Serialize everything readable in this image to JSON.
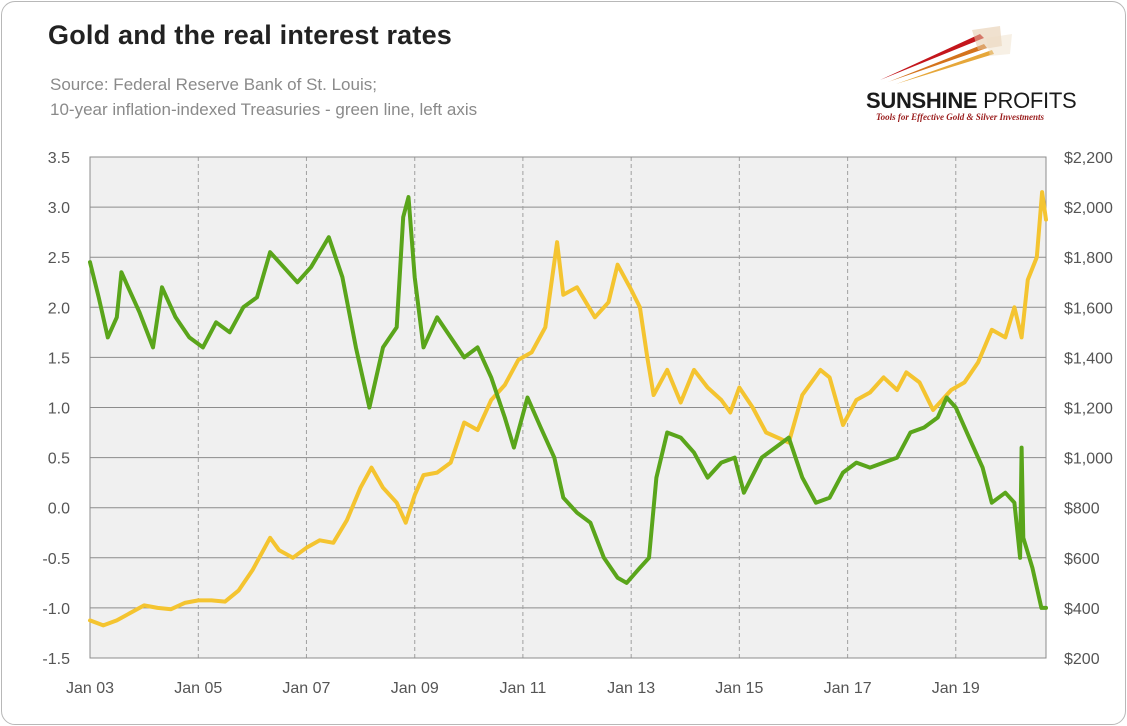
{
  "chart_data": {
    "type": "line",
    "title": "Gold and the real interest rates",
    "subtitle_lines": [
      "Source: Federal Reserve Bank of St. Louis;",
      "10-year inflation-indexed Treasuries - green line, left axis"
    ],
    "x_range": [
      "2003-01-01",
      "2020-09-01"
    ],
    "x_ticks": [
      "Jan 03",
      "Jan 05",
      "Jan 07",
      "Jan 09",
      "Jan 11",
      "Jan 13",
      "Jan 15",
      "Jan 17",
      "Jan 19"
    ],
    "x_tick_dates": [
      "2003-01-01",
      "2005-01-01",
      "2007-01-01",
      "2009-01-01",
      "2011-01-01",
      "2013-01-01",
      "2015-01-01",
      "2017-01-01",
      "2019-01-01"
    ],
    "y_left": {
      "min": -1.5,
      "max": 3.5,
      "ticks": [
        "3.5",
        "3.0",
        "2.5",
        "2.0",
        "1.5",
        "1.0",
        "0.5",
        "0.0",
        "-0.5",
        "-1.0",
        "-1.5"
      ]
    },
    "y_right": {
      "min": 200,
      "max": 2200,
      "ticks": [
        "$2,200",
        "$2,000",
        "$1,800",
        "$1,600",
        "$1,400",
        "$1,200",
        "$1,000",
        "$800",
        "$600",
        "$400",
        "$200"
      ]
    },
    "grid": {
      "horizontal": true,
      "vertical_dashed": true
    },
    "series": [
      {
        "axis": "left",
        "color": "#5aa51b",
        "points": [
          [
            "2003-01-01",
            2.45
          ],
          [
            "2003-03-01",
            2.1
          ],
          [
            "2003-05-01",
            1.7
          ],
          [
            "2003-07-01",
            1.9
          ],
          [
            "2003-08-01",
            2.35
          ],
          [
            "2003-10-01",
            2.15
          ],
          [
            "2003-12-01",
            1.95
          ],
          [
            "2004-03-01",
            1.6
          ],
          [
            "2004-05-01",
            2.2
          ],
          [
            "2004-08-01",
            1.9
          ],
          [
            "2004-11-01",
            1.7
          ],
          [
            "2005-02-01",
            1.6
          ],
          [
            "2005-05-01",
            1.85
          ],
          [
            "2005-08-01",
            1.75
          ],
          [
            "2005-11-01",
            2.0
          ],
          [
            "2006-02-01",
            2.1
          ],
          [
            "2006-05-01",
            2.55
          ],
          [
            "2006-08-01",
            2.4
          ],
          [
            "2006-11-01",
            2.25
          ],
          [
            "2007-02-01",
            2.4
          ],
          [
            "2007-06-01",
            2.7
          ],
          [
            "2007-09-01",
            2.3
          ],
          [
            "2007-12-01",
            1.6
          ],
          [
            "2008-03-01",
            1.0
          ],
          [
            "2008-06-01",
            1.6
          ],
          [
            "2008-09-01",
            1.8
          ],
          [
            "2008-10-15",
            2.9
          ],
          [
            "2008-11-20",
            3.1
          ],
          [
            "2009-01-01",
            2.3
          ],
          [
            "2009-03-01",
            1.6
          ],
          [
            "2009-06-01",
            1.9
          ],
          [
            "2009-09-01",
            1.7
          ],
          [
            "2009-12-01",
            1.5
          ],
          [
            "2010-03-01",
            1.6
          ],
          [
            "2010-06-01",
            1.3
          ],
          [
            "2010-09-01",
            0.9
          ],
          [
            "2010-11-01",
            0.6
          ],
          [
            "2011-02-01",
            1.1
          ],
          [
            "2011-05-01",
            0.8
          ],
          [
            "2011-08-01",
            0.5
          ],
          [
            "2011-10-01",
            0.1
          ],
          [
            "2012-01-01",
            -0.05
          ],
          [
            "2012-04-01",
            -0.15
          ],
          [
            "2012-07-01",
            -0.5
          ],
          [
            "2012-10-01",
            -0.7
          ],
          [
            "2012-12-01",
            -0.75
          ],
          [
            "2013-03-01",
            -0.6
          ],
          [
            "2013-05-01",
            -0.5
          ],
          [
            "2013-06-20",
            0.3
          ],
          [
            "2013-09-01",
            0.75
          ],
          [
            "2013-12-01",
            0.7
          ],
          [
            "2014-03-01",
            0.55
          ],
          [
            "2014-06-01",
            0.3
          ],
          [
            "2014-09-01",
            0.45
          ],
          [
            "2014-12-01",
            0.5
          ],
          [
            "2015-02-01",
            0.15
          ],
          [
            "2015-06-01",
            0.5
          ],
          [
            "2015-09-01",
            0.6
          ],
          [
            "2015-12-01",
            0.7
          ],
          [
            "2016-03-01",
            0.3
          ],
          [
            "2016-06-01",
            0.05
          ],
          [
            "2016-09-01",
            0.1
          ],
          [
            "2016-12-01",
            0.35
          ],
          [
            "2017-03-01",
            0.45
          ],
          [
            "2017-06-01",
            0.4
          ],
          [
            "2017-09-01",
            0.45
          ],
          [
            "2017-12-01",
            0.5
          ],
          [
            "2018-03-01",
            0.75
          ],
          [
            "2018-06-01",
            0.8
          ],
          [
            "2018-09-01",
            0.9
          ],
          [
            "2018-11-01",
            1.1
          ],
          [
            "2019-01-01",
            1.0
          ],
          [
            "2019-04-01",
            0.7
          ],
          [
            "2019-07-01",
            0.4
          ],
          [
            "2019-09-01",
            0.05
          ],
          [
            "2019-12-01",
            0.15
          ],
          [
            "2020-02-01",
            0.05
          ],
          [
            "2020-03-10",
            -0.5
          ],
          [
            "2020-03-20",
            0.6
          ],
          [
            "2020-04-01",
            -0.3
          ],
          [
            "2020-06-01",
            -0.6
          ],
          [
            "2020-08-01",
            -1.0
          ],
          [
            "2020-09-01",
            -1.0
          ]
        ]
      },
      {
        "axis": "right",
        "color": "#f4c430",
        "points": [
          [
            "2003-01-01",
            350
          ],
          [
            "2003-04-01",
            330
          ],
          [
            "2003-07-01",
            350
          ],
          [
            "2003-10-01",
            380
          ],
          [
            "2004-01-01",
            410
          ],
          [
            "2004-04-01",
            400
          ],
          [
            "2004-07-01",
            395
          ],
          [
            "2004-10-01",
            420
          ],
          [
            "2005-01-01",
            430
          ],
          [
            "2005-04-01",
            430
          ],
          [
            "2005-07-01",
            425
          ],
          [
            "2005-10-01",
            470
          ],
          [
            "2006-01-01",
            550
          ],
          [
            "2006-05-01",
            680
          ],
          [
            "2006-07-01",
            630
          ],
          [
            "2006-10-01",
            600
          ],
          [
            "2007-01-01",
            640
          ],
          [
            "2007-04-01",
            670
          ],
          [
            "2007-07-01",
            660
          ],
          [
            "2007-10-01",
            750
          ],
          [
            "2008-01-01",
            880
          ],
          [
            "2008-03-15",
            960
          ],
          [
            "2008-06-01",
            880
          ],
          [
            "2008-09-01",
            820
          ],
          [
            "2008-11-01",
            740
          ],
          [
            "2009-01-01",
            850
          ],
          [
            "2009-03-01",
            930
          ],
          [
            "2009-06-01",
            940
          ],
          [
            "2009-09-01",
            980
          ],
          [
            "2009-12-01",
            1140
          ],
          [
            "2010-03-01",
            1110
          ],
          [
            "2010-06-01",
            1230
          ],
          [
            "2010-09-01",
            1290
          ],
          [
            "2010-12-01",
            1390
          ],
          [
            "2011-03-01",
            1420
          ],
          [
            "2011-06-01",
            1520
          ],
          [
            "2011-08-20",
            1860
          ],
          [
            "2011-10-01",
            1650
          ],
          [
            "2012-01-01",
            1680
          ],
          [
            "2012-05-01",
            1560
          ],
          [
            "2012-08-01",
            1620
          ],
          [
            "2012-10-01",
            1770
          ],
          [
            "2013-01-01",
            1670
          ],
          [
            "2013-03-01",
            1600
          ],
          [
            "2013-04-20",
            1400
          ],
          [
            "2013-06-01",
            1250
          ],
          [
            "2013-09-01",
            1350
          ],
          [
            "2013-12-01",
            1220
          ],
          [
            "2014-03-01",
            1350
          ],
          [
            "2014-06-01",
            1280
          ],
          [
            "2014-09-01",
            1230
          ],
          [
            "2014-11-01",
            1180
          ],
          [
            "2015-01-01",
            1280
          ],
          [
            "2015-04-01",
            1200
          ],
          [
            "2015-07-01",
            1100
          ],
          [
            "2015-12-01",
            1060
          ],
          [
            "2016-03-01",
            1250
          ],
          [
            "2016-07-01",
            1350
          ],
          [
            "2016-09-01",
            1320
          ],
          [
            "2016-12-01",
            1130
          ],
          [
            "2017-03-01",
            1230
          ],
          [
            "2017-06-01",
            1260
          ],
          [
            "2017-09-01",
            1320
          ],
          [
            "2017-12-01",
            1270
          ],
          [
            "2018-02-01",
            1340
          ],
          [
            "2018-05-01",
            1300
          ],
          [
            "2018-08-01",
            1190
          ],
          [
            "2018-12-01",
            1270
          ],
          [
            "2019-03-01",
            1300
          ],
          [
            "2019-06-01",
            1380
          ],
          [
            "2019-09-01",
            1510
          ],
          [
            "2019-12-01",
            1480
          ],
          [
            "2020-02-01",
            1600
          ],
          [
            "2020-03-20",
            1480
          ],
          [
            "2020-05-01",
            1710
          ],
          [
            "2020-07-01",
            1800
          ],
          [
            "2020-08-06",
            2060
          ],
          [
            "2020-09-01",
            1950
          ]
        ]
      }
    ]
  },
  "logo": {
    "name_bold": "SUNSHINE",
    "name_thin": " PROFITS",
    "tagline": "Tools for Effective Gold & Silver Investments"
  }
}
